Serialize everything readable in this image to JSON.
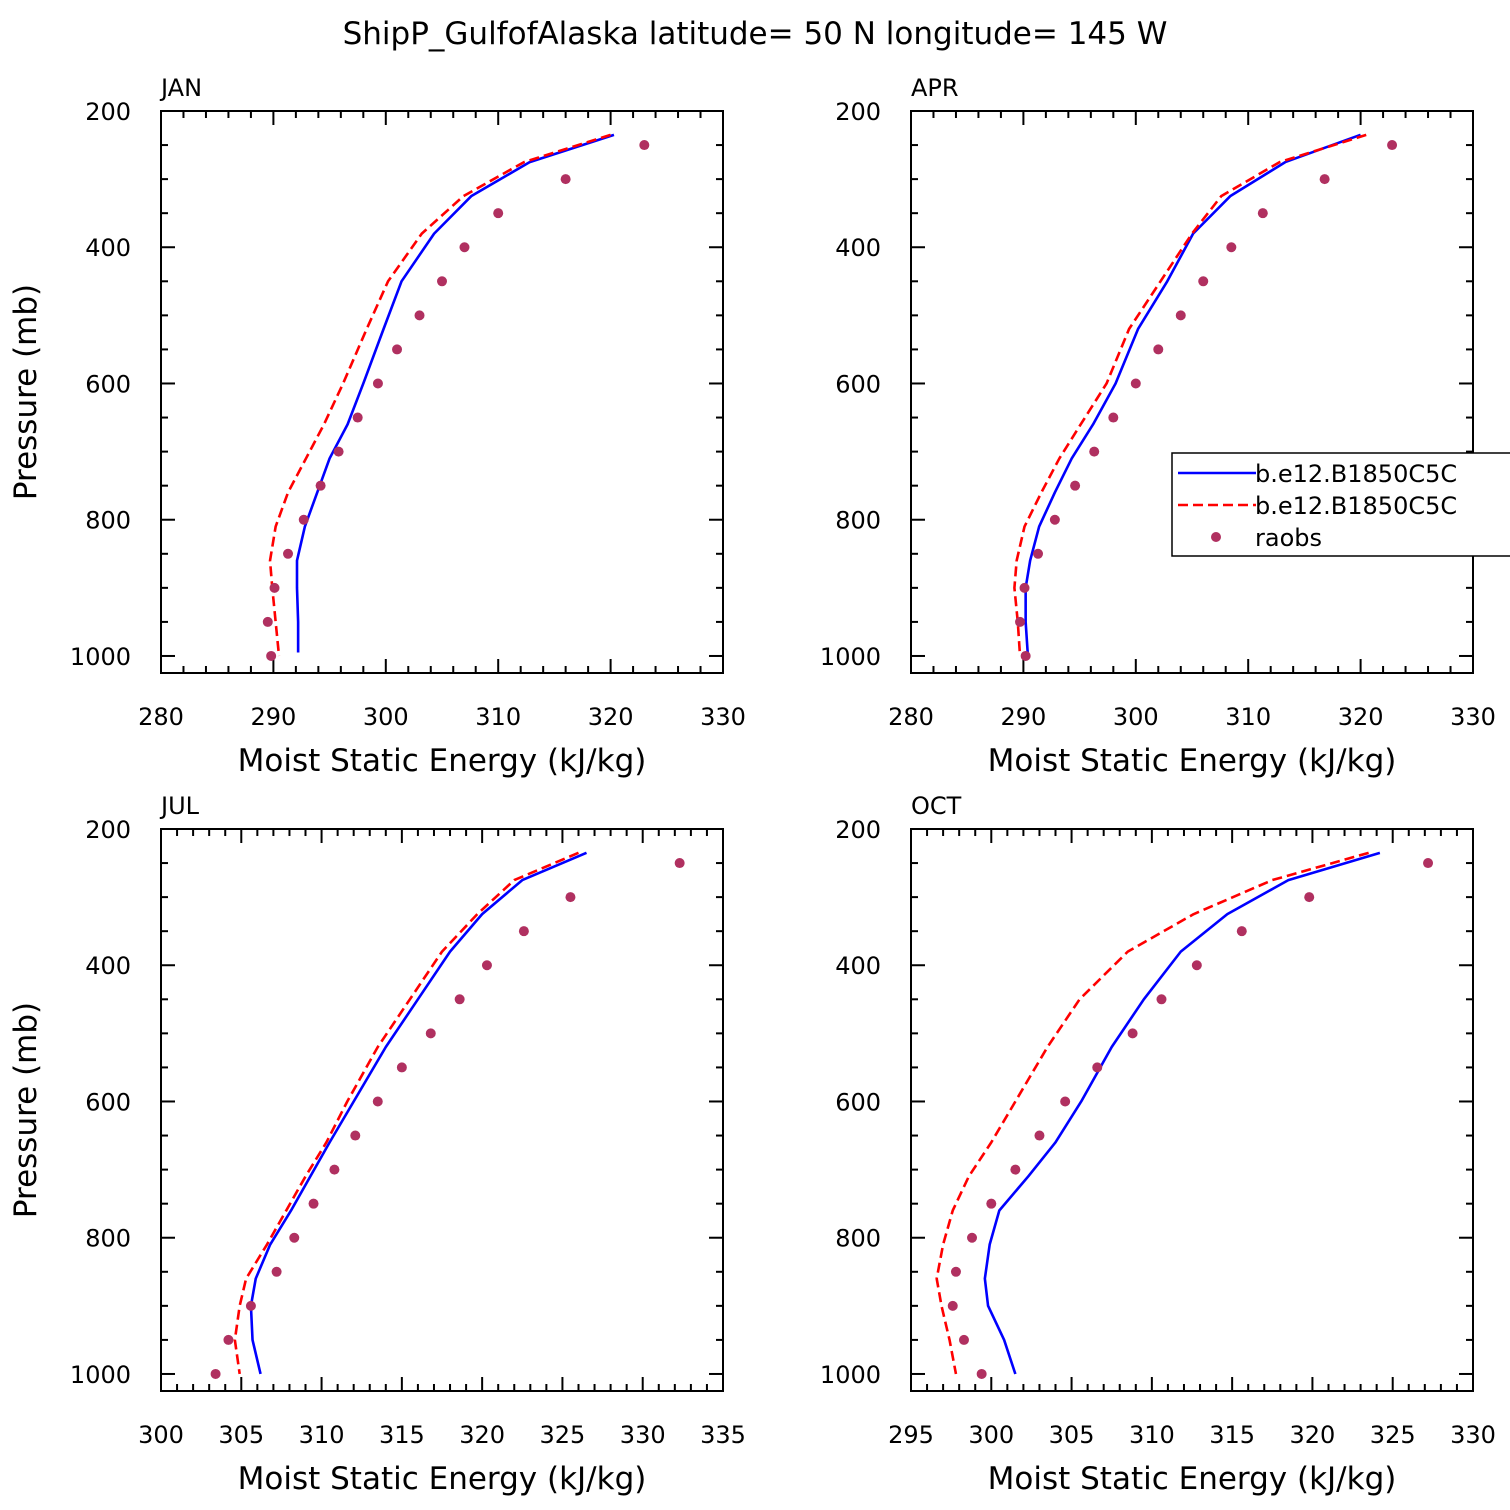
{
  "title": "ShipP_GulfofAlaska  latitude= 50 N longitude= 145 W",
  "legend": {
    "entries": [
      {
        "label": "b.e12.B1850C5C",
        "style": "solid",
        "color": "#0000ff"
      },
      {
        "label": "b.e12.B1850C5C",
        "style": "dashed",
        "color": "#ff0000"
      },
      {
        "label": "raobs",
        "style": "marker",
        "color": "#b03060"
      }
    ]
  },
  "chart_data": [
    {
      "type": "line",
      "panel": "JAN",
      "xlabel": "Moist Static Energy (kJ/kg)",
      "ylabel": "Pressure (mb)",
      "xlim": [
        280,
        330
      ],
      "ylim": [
        1025,
        200
      ],
      "xticks": [
        280,
        290,
        300,
        310,
        320,
        330
      ],
      "yticks": [
        200,
        400,
        600,
        800,
        1000
      ],
      "series": [
        {
          "name": "b.e12.B1850C5C",
          "style": "solid",
          "color": "#0000ff",
          "x": [
            320.3,
            312.8,
            307.6,
            304.3,
            301.4,
            299.8,
            298.0,
            296.6,
            295.0,
            293.9,
            292.8,
            292.1,
            292.1,
            292.2,
            292.2
          ],
          "y": [
            235,
            275,
            325,
            380,
            450,
            520,
            600,
            660,
            710,
            760,
            810,
            860,
            900,
            950,
            995
          ]
        },
        {
          "name": "b.e12.B1850C5C",
          "style": "dashed",
          "color": "#ff0000",
          "x": [
            320.0,
            312.3,
            306.9,
            303.2,
            300.2,
            298.3,
            296.2,
            294.5,
            292.9,
            291.3,
            290.2,
            289.7,
            289.9,
            290.2,
            290.5
          ],
          "y": [
            235,
            275,
            325,
            380,
            450,
            520,
            600,
            660,
            710,
            760,
            810,
            860,
            900,
            950,
            1000
          ]
        },
        {
          "name": "raobs",
          "style": "marker",
          "color": "#b03060",
          "x": [
            323.0,
            316.0,
            310.0,
            307.0,
            305.0,
            303.0,
            301.0,
            299.3,
            297.5,
            295.8,
            294.2,
            292.7,
            291.3,
            290.1,
            289.5,
            289.8
          ],
          "y": [
            250,
            300,
            350,
            400,
            450,
            500,
            550,
            600,
            650,
            700,
            750,
            800,
            850,
            900,
            950,
            1000
          ]
        }
      ]
    },
    {
      "type": "line",
      "panel": "APR",
      "xlabel": "Moist Static Energy (kJ/kg)",
      "ylabel": "",
      "xlim": [
        280,
        330
      ],
      "ylim": [
        1025,
        200
      ],
      "xticks": [
        280,
        290,
        300,
        310,
        320,
        330
      ],
      "yticks": [
        200,
        400,
        600,
        800,
        1000
      ],
      "series": [
        {
          "name": "b.e12.B1850C5C",
          "style": "solid",
          "color": "#0000ff",
          "x": [
            320.0,
            313.3,
            308.4,
            305.1,
            302.8,
            300.2,
            298.2,
            296.2,
            294.3,
            292.8,
            291.4,
            290.6,
            290.2,
            290.2,
            290.4
          ],
          "y": [
            235,
            275,
            325,
            380,
            450,
            520,
            600,
            660,
            710,
            760,
            810,
            860,
            900,
            950,
            1000
          ]
        },
        {
          "name": "b.e12.B1850C5C",
          "style": "dashed",
          "color": "#ff0000",
          "x": [
            320.5,
            312.8,
            307.6,
            305.0,
            302.2,
            299.4,
            297.4,
            295.1,
            293.2,
            291.6,
            290.1,
            289.4,
            289.2,
            289.5,
            289.7
          ],
          "y": [
            235,
            275,
            325,
            380,
            450,
            520,
            600,
            660,
            710,
            760,
            810,
            860,
            900,
            950,
            1000
          ]
        },
        {
          "name": "raobs",
          "style": "marker",
          "color": "#b03060",
          "x": [
            322.8,
            316.8,
            311.3,
            308.5,
            306.0,
            304.0,
            302.0,
            300.0,
            298.0,
            296.3,
            294.6,
            292.8,
            291.3,
            290.1,
            289.7,
            290.2
          ],
          "y": [
            250,
            300,
            350,
            400,
            450,
            500,
            550,
            600,
            650,
            700,
            750,
            800,
            850,
            900,
            950,
            1000
          ]
        }
      ]
    },
    {
      "type": "line",
      "panel": "JUL",
      "xlabel": "Moist Static Energy (kJ/kg)",
      "ylabel": "Pressure (mb)",
      "xlim": [
        300,
        335
      ],
      "ylim": [
        1025,
        200
      ],
      "xticks": [
        300,
        305,
        310,
        315,
        320,
        325,
        330,
        335
      ],
      "yticks": [
        200,
        400,
        600,
        800,
        1000
      ],
      "series": [
        {
          "name": "b.e12.B1850C5C",
          "style": "solid",
          "color": "#0000ff",
          "x": [
            326.5,
            322.5,
            320.0,
            318.0,
            316.0,
            314.0,
            312.0,
            310.5,
            309.3,
            308.1,
            306.8,
            305.9,
            305.6,
            305.7,
            306.2
          ],
          "y": [
            235,
            275,
            325,
            380,
            450,
            520,
            600,
            660,
            710,
            760,
            810,
            860,
            900,
            950,
            1000
          ]
        },
        {
          "name": "b.e12.B1850C5C",
          "style": "dashed",
          "color": "#ff0000",
          "x": [
            326.0,
            322.0,
            319.7,
            317.5,
            315.5,
            313.5,
            311.6,
            310.3,
            309.0,
            307.8,
            306.6,
            305.3,
            304.9,
            304.6,
            304.9
          ],
          "y": [
            235,
            275,
            325,
            380,
            450,
            520,
            600,
            660,
            710,
            760,
            810,
            860,
            900,
            950,
            1000
          ]
        },
        {
          "name": "raobs",
          "style": "marker",
          "color": "#b03060",
          "x": [
            332.3,
            325.5,
            322.6,
            320.3,
            318.6,
            316.8,
            315.0,
            313.5,
            312.1,
            310.8,
            309.5,
            308.3,
            307.2,
            305.6,
            304.2,
            303.4
          ],
          "y": [
            250,
            300,
            350,
            400,
            450,
            500,
            550,
            600,
            650,
            700,
            750,
            800,
            850,
            900,
            950,
            1000
          ]
        }
      ]
    },
    {
      "type": "line",
      "panel": "OCT",
      "xlabel": "Moist Static Energy (kJ/kg)",
      "ylabel": "",
      "xlim": [
        295,
        330
      ],
      "ylim": [
        1025,
        200
      ],
      "xticks": [
        295,
        300,
        305,
        310,
        315,
        320,
        325,
        330
      ],
      "yticks": [
        200,
        400,
        600,
        800,
        1000
      ],
      "series": [
        {
          "name": "b.e12.B1850C5C",
          "style": "solid",
          "color": "#0000ff",
          "x": [
            324.2,
            318.5,
            314.7,
            311.8,
            309.5,
            307.5,
            305.6,
            304.0,
            302.3,
            300.5,
            299.9,
            299.6,
            299.8,
            300.8,
            301.5
          ],
          "y": [
            235,
            275,
            325,
            380,
            450,
            520,
            600,
            660,
            710,
            760,
            810,
            860,
            900,
            950,
            1000
          ]
        },
        {
          "name": "b.e12.B1850C5C",
          "style": "dashed",
          "color": "#ff0000",
          "x": [
            323.5,
            317.5,
            312.6,
            308.5,
            305.5,
            303.5,
            301.5,
            300.0,
            298.6,
            297.6,
            297.0,
            296.6,
            296.9,
            297.4,
            297.8
          ],
          "y": [
            235,
            275,
            325,
            380,
            450,
            520,
            600,
            660,
            710,
            760,
            810,
            860,
            900,
            950,
            1000
          ]
        },
        {
          "name": "raobs",
          "style": "marker",
          "color": "#b03060",
          "x": [
            327.2,
            319.8,
            315.6,
            312.8,
            310.6,
            308.8,
            306.6,
            304.6,
            303.0,
            301.5,
            300.0,
            298.8,
            297.8,
            297.6,
            298.3,
            299.4
          ],
          "y": [
            250,
            300,
            350,
            400,
            450,
            500,
            550,
            600,
            650,
            700,
            750,
            800,
            850,
            900,
            950,
            1000
          ]
        }
      ]
    }
  ]
}
